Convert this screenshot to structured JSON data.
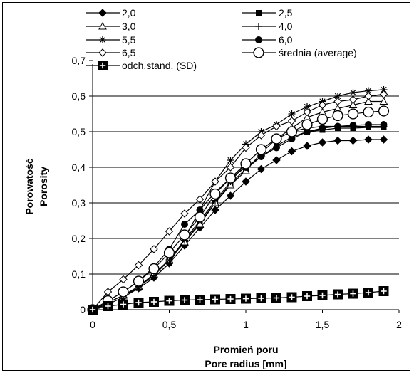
{
  "chart_data": {
    "type": "line",
    "title": "",
    "xlabel_lines": [
      "Promień poru",
      "Pore radius [mm]"
    ],
    "ylabel_lines": [
      "Porowatość",
      "Porosity"
    ],
    "xlim": [
      0,
      2
    ],
    "ylim": [
      0,
      0.7
    ],
    "x_ticks": [
      "0",
      "0,5",
      "1",
      "1,5",
      "2"
    ],
    "y_ticks": [
      "0",
      "0,1",
      "0,2",
      "0,3",
      "0,4",
      "0,5",
      "0,6",
      "0,7"
    ],
    "y_grid": true,
    "legend_position": "top",
    "x": [
      0,
      0.1,
      0.2,
      0.3,
      0.4,
      0.5,
      0.6,
      0.7,
      0.8,
      0.9,
      1.0,
      1.1,
      1.2,
      1.3,
      1.4,
      1.5,
      1.6,
      1.7,
      1.8,
      1.9
    ],
    "series": [
      {
        "name": "2,0",
        "marker": "diamond-filled",
        "values": [
          0,
          0.015,
          0.035,
          0.06,
          0.09,
          0.13,
          0.18,
          0.23,
          0.28,
          0.32,
          0.36,
          0.395,
          0.42,
          0.445,
          0.46,
          0.47,
          0.475,
          0.475,
          0.478,
          0.478
        ]
      },
      {
        "name": "2,5",
        "marker": "square-filled",
        "values": [
          0,
          0.02,
          0.04,
          0.065,
          0.1,
          0.14,
          0.19,
          0.245,
          0.3,
          0.355,
          0.395,
          0.43,
          0.46,
          0.485,
          0.5,
          0.505,
          0.51,
          0.51,
          0.512,
          0.512
        ]
      },
      {
        "name": "3,0",
        "marker": "triangle-open",
        "values": [
          0,
          0.02,
          0.04,
          0.065,
          0.1,
          0.14,
          0.19,
          0.24,
          0.3,
          0.35,
          0.39,
          0.44,
          0.48,
          0.51,
          0.54,
          0.555,
          0.565,
          0.575,
          0.585,
          0.585
        ]
      },
      {
        "name": "4,0",
        "marker": "plus",
        "values": [
          0,
          0.02,
          0.04,
          0.065,
          0.095,
          0.14,
          0.195,
          0.25,
          0.305,
          0.36,
          0.41,
          0.45,
          0.48,
          0.5,
          0.51,
          0.515,
          0.515,
          0.515,
          0.515,
          0.515
        ]
      },
      {
        "name": "5,5",
        "marker": "star",
        "values": [
          0,
          0.02,
          0.04,
          0.06,
          0.09,
          0.13,
          0.2,
          0.28,
          0.36,
          0.42,
          0.465,
          0.5,
          0.52,
          0.55,
          0.57,
          0.585,
          0.6,
          0.61,
          0.615,
          0.618
        ]
      },
      {
        "name": "6,0",
        "marker": "circle-filled",
        "values": [
          0,
          0.025,
          0.05,
          0.08,
          0.12,
          0.17,
          0.24,
          0.28,
          0.33,
          0.37,
          0.4,
          0.43,
          0.455,
          0.48,
          0.5,
          0.51,
          0.515,
          0.518,
          0.52,
          0.52
        ]
      },
      {
        "name": "6,5",
        "marker": "diamond-open",
        "values": [
          0,
          0.05,
          0.085,
          0.125,
          0.17,
          0.22,
          0.27,
          0.31,
          0.36,
          0.4,
          0.455,
          0.49,
          0.515,
          0.53,
          0.555,
          0.575,
          0.585,
          0.59,
          0.6,
          0.605
        ]
      },
      {
        "name": "średnia (average)",
        "marker": "circle-open",
        "values": [
          0,
          0.025,
          0.05,
          0.08,
          0.115,
          0.16,
          0.21,
          0.26,
          0.325,
          0.37,
          0.41,
          0.45,
          0.48,
          0.5,
          0.52,
          0.535,
          0.545,
          0.55,
          0.555,
          0.558
        ]
      },
      {
        "name": "odch.stand. (SD)",
        "marker": "square-plus",
        "values": [
          0,
          0.01,
          0.015,
          0.02,
          0.022,
          0.025,
          0.027,
          0.028,
          0.029,
          0.03,
          0.031,
          0.032,
          0.033,
          0.035,
          0.038,
          0.04,
          0.043,
          0.045,
          0.048,
          0.052
        ]
      }
    ]
  }
}
